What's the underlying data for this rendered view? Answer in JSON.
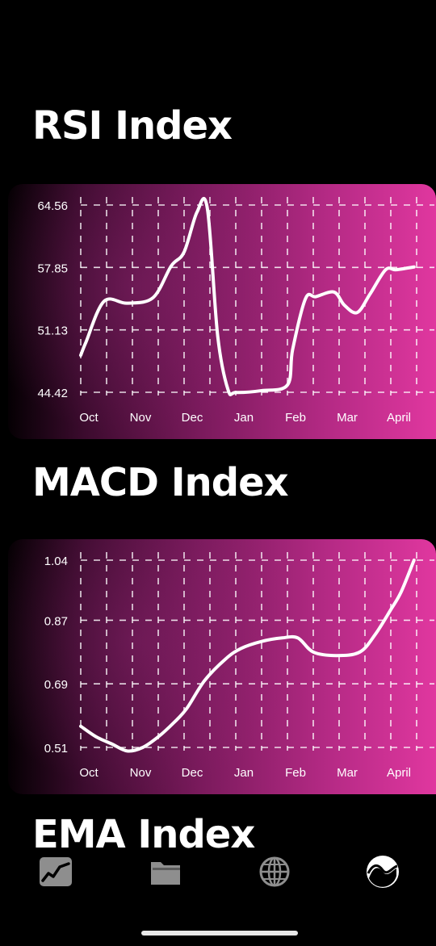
{
  "sections": [
    {
      "title": "RSI Index"
    },
    {
      "title": "MACD Index"
    },
    {
      "title": "EMA Index"
    }
  ],
  "chart_data": [
    {
      "type": "line",
      "title": "RSI Index",
      "categories": [
        "Oct",
        "Nov",
        "Dec",
        "Jan",
        "Feb",
        "Mar",
        "April"
      ],
      "y_ticks": [
        "64.56",
        "57.85",
        "51.13",
        "44.42"
      ],
      "ylim": [
        44.42,
        64.56
      ],
      "x": [
        0,
        0.1,
        0.45,
        0.9,
        1.4,
        1.75,
        2.0,
        2.25,
        2.45,
        2.65,
        2.85,
        3.0,
        3.5,
        4.0,
        4.1,
        4.35,
        4.55,
        4.9,
        5.1,
        5.35,
        5.6,
        5.9,
        6.1,
        6.45
      ],
      "values": [
        48.4,
        49.8,
        54.2,
        54.0,
        54.6,
        58.0,
        59.5,
        63.8,
        64.2,
        50.5,
        44.7,
        44.4,
        44.6,
        45.2,
        49.0,
        54.5,
        54.7,
        55.2,
        53.8,
        53.0,
        55.0,
        57.6,
        57.6,
        57.9
      ],
      "line_color": "#ffffff",
      "grid": true,
      "gradient_colors": [
        "#050003",
        "#3c0b2e",
        "#7a1a5c",
        "#b52a85",
        "#e0379f"
      ]
    },
    {
      "type": "line",
      "title": "MACD Index",
      "categories": [
        "Oct",
        "Nov",
        "Dec",
        "Jan",
        "Feb",
        "Mar",
        "April"
      ],
      "y_ticks": [
        "1.04",
        "0.87",
        "0.69",
        "0.51"
      ],
      "ylim": [
        0.51,
        1.04
      ],
      "x": [
        0,
        0.3,
        0.6,
        0.9,
        1.2,
        1.5,
        1.8,
        2.05,
        2.4,
        2.8,
        3.1,
        3.5,
        3.9,
        4.2,
        4.5,
        4.95,
        5.4,
        5.7,
        6.0,
        6.2,
        6.45
      ],
      "values": [
        0.57,
        0.54,
        0.52,
        0.5,
        0.51,
        0.54,
        0.58,
        0.62,
        0.7,
        0.76,
        0.79,
        0.81,
        0.82,
        0.82,
        0.78,
        0.77,
        0.78,
        0.83,
        0.9,
        0.95,
        1.04
      ],
      "line_color": "#ffffff",
      "grid": true,
      "gradient_colors": [
        "#050003",
        "#3c0b2e",
        "#7a1a5c",
        "#b52a85",
        "#e0379f"
      ]
    }
  ],
  "tab_bar": {
    "items": [
      {
        "icon": "chart-icon",
        "name": "tab-chart"
      },
      {
        "icon": "folder-icon",
        "name": "tab-folder"
      },
      {
        "icon": "globe-icon",
        "name": "tab-globe"
      },
      {
        "icon": "wave-circle-icon",
        "name": "tab-indicators",
        "active": true
      }
    ],
    "inactive_color": "#8e8e8e",
    "active_color": "#ffffff"
  }
}
